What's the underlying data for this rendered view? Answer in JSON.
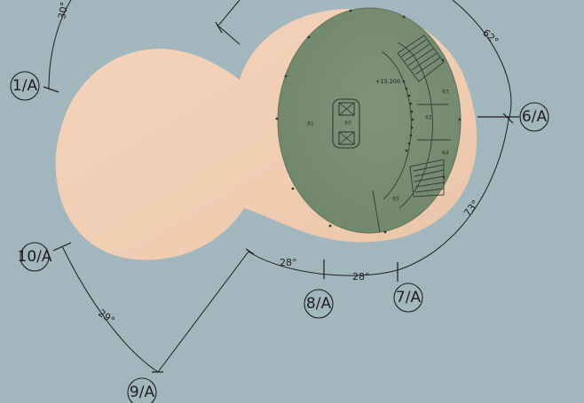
{
  "grid_tags": {
    "t1": "1/A",
    "t6": "6/A",
    "t7": "7/A",
    "t8": "8/A",
    "t9": "9/A",
    "t10": "10/A"
  },
  "angles": {
    "a30": "30°",
    "a62": "62°",
    "a73": "73°",
    "a28_left": "28°",
    "a28_right": "28°",
    "a29": "29°"
  },
  "rooms": {
    "r60": "60",
    "r61": "61",
    "r62": "62",
    "r63": "63",
    "r64": "64",
    "r65": "65"
  },
  "level": "+15.200",
  "colors": {
    "water": "#9fb3ba",
    "blob": "#f1cdb0",
    "floor": "#788d72",
    "ink": "#1e1e1e"
  }
}
